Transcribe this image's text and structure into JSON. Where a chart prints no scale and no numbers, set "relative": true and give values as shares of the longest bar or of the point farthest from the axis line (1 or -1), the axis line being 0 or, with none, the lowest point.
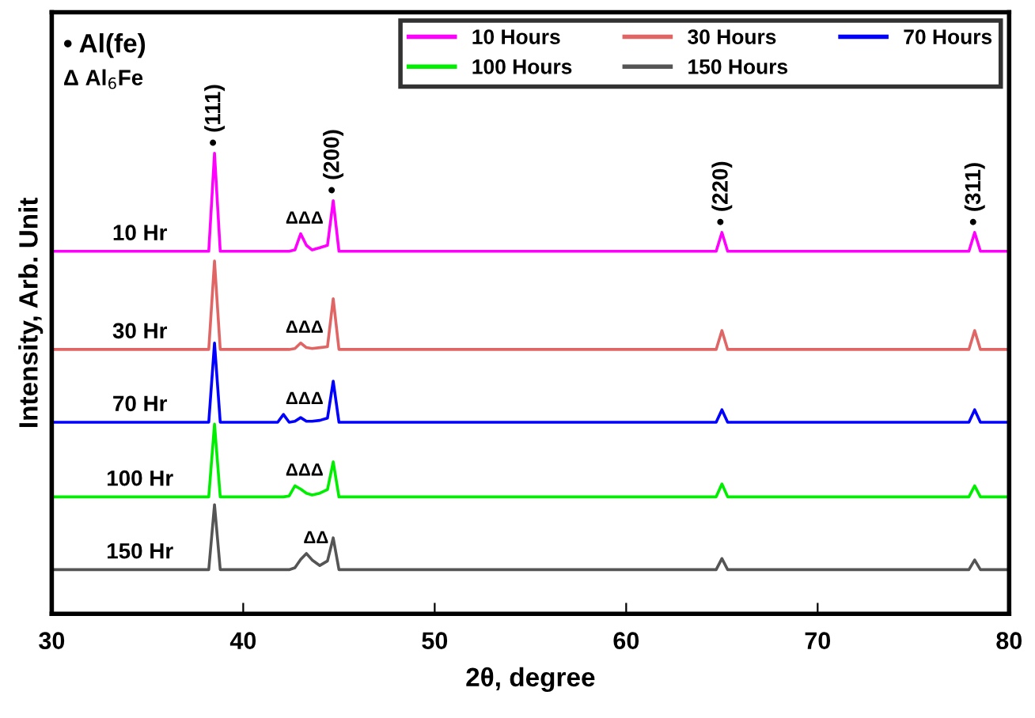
{
  "chart_data": {
    "type": "line",
    "relative": true,
    "xlabel": "2θ, degree",
    "ylabel": "Intensity, Arb. Unit",
    "xlim": [
      30,
      80
    ],
    "xticks": [
      30,
      40,
      50,
      60,
      70,
      80
    ],
    "grid": false,
    "legend": "top right",
    "marker": "none",
    "line_style": "solid",
    "x": [
      30,
      38.2,
      38.5,
      38.8,
      41.8,
      42.1,
      42.4,
      42.7,
      43.0,
      43.3,
      43.6,
      44.0,
      44.4,
      44.7,
      45.0,
      64.7,
      65.0,
      65.3,
      77.9,
      78.2,
      78.5,
      80
    ],
    "series": [
      {
        "name": "10 Hours",
        "color": "#ff00ff",
        "values": [
          0.787,
          0.787,
          1.0,
          0.787,
          0.787,
          0.787,
          0.787,
          0.79,
          0.825,
          0.8,
          0.79,
          0.795,
          0.8,
          0.897,
          0.787,
          0.787,
          0.828,
          0.787,
          0.787,
          0.828,
          0.787,
          0.787
        ]
      },
      {
        "name": "30 Hours",
        "color": "#e06666",
        "values": [
          0.574,
          0.574,
          0.766,
          0.574,
          0.574,
          0.574,
          0.574,
          0.576,
          0.588,
          0.578,
          0.576,
          0.578,
          0.58,
          0.684,
          0.574,
          0.574,
          0.615,
          0.574,
          0.574,
          0.615,
          0.574,
          0.574
        ]
      },
      {
        "name": "70 Hours",
        "color": "#0000ff",
        "values": [
          0.416,
          0.416,
          0.588,
          0.416,
          0.416,
          0.433,
          0.416,
          0.418,
          0.426,
          0.418,
          0.418,
          0.42,
          0.425,
          0.505,
          0.416,
          0.416,
          0.443,
          0.416,
          0.416,
          0.443,
          0.416,
          0.416
        ]
      },
      {
        "name": "100 Hours",
        "color": "#00ee00",
        "values": [
          0.254,
          0.254,
          0.412,
          0.254,
          0.254,
          0.254,
          0.256,
          0.278,
          0.271,
          0.262,
          0.258,
          0.262,
          0.27,
          0.33,
          0.254,
          0.254,
          0.282,
          0.254,
          0.254,
          0.278,
          0.254,
          0.254
        ]
      },
      {
        "name": "150 Hours",
        "color": "#555555",
        "values": [
          0.096,
          0.096,
          0.237,
          0.096,
          0.096,
          0.096,
          0.096,
          0.1,
          0.118,
          0.131,
          0.117,
          0.105,
          0.115,
          0.165,
          0.096,
          0.096,
          0.12,
          0.096,
          0.096,
          0.117,
          0.096,
          0.096
        ]
      }
    ],
    "annotations": [
      {
        "text": "• (111)",
        "x": 38.5,
        "y": 1.0
      },
      {
        "text": "• (200)",
        "x": 44.7,
        "y": 0.897
      },
      {
        "text": "• (220)",
        "x": 65.0,
        "y": 0.828
      },
      {
        "text": "• (311)",
        "x": 78.2,
        "y": 0.828
      },
      {
        "text": "10 Hr",
        "x": 34.6,
        "y": 0.787
      },
      {
        "text": "30 Hr",
        "x": 34.6,
        "y": 0.574
      },
      {
        "text": "70 Hr",
        "x": 34.6,
        "y": 0.416
      },
      {
        "text": "100 Hr",
        "x": 34.6,
        "y": 0.254
      },
      {
        "text": "150 Hr",
        "x": 34.6,
        "y": 0.096
      },
      {
        "text": "ΔΔΔ",
        "x": 43.2,
        "y": 0.825
      },
      {
        "text": "ΔΔΔ",
        "x": 43.2,
        "y": 0.588
      },
      {
        "text": "ΔΔΔ",
        "x": 43.2,
        "y": 0.433
      },
      {
        "text": "ΔΔΔ",
        "x": 43.2,
        "y": 0.278
      },
      {
        "text": "ΔΔ",
        "x": 43.8,
        "y": 0.131
      },
      "• Al(fe)",
      "Δ Al$_{6}$Fe"
    ]
  }
}
